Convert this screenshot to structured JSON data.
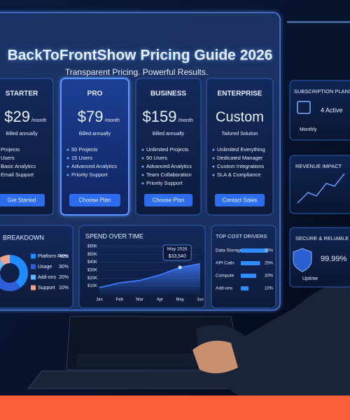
{
  "header": {
    "title": "BackToFrontShow Pricing Guide 2026",
    "subtitle": "Transparent Pricing. Powerful Results."
  },
  "plans": [
    {
      "name": "STARTER",
      "price": "$29",
      "period": "/month",
      "billing": "Billed annually",
      "features": [
        "Projects",
        "Users",
        "Basic Analytics",
        "Email Support"
      ],
      "button": "Get Started"
    },
    {
      "name": "PRO",
      "price": "$79",
      "period": "/month",
      "billing": "Billed annually",
      "features": [
        "50 Projects",
        "15 Users",
        "Advanced Analytics",
        "Priority Support"
      ],
      "button": "Choose Plan"
    },
    {
      "name": "BUSINESS",
      "price": "$159",
      "period": "/month",
      "billing": "Billed annually",
      "features": [
        "Unlimited Projects",
        "50 Users",
        "Advanced Analytics",
        "Team Collaboration",
        "Priority Support"
      ],
      "button": "Choose Plan"
    },
    {
      "name": "ENTERPRISE",
      "price": "Custom",
      "billing": "Tailored Solution",
      "features": [
        "Unlimited Everything",
        "Dedicated Manager",
        "Custom Integrations",
        "SLA & Compliance"
      ],
      "button": "Contact Sales"
    }
  ],
  "side_panels": {
    "subscription": {
      "title": "SUBSCRIPTION PLANS",
      "lines": [
        "4 Active",
        "Monthly"
      ]
    },
    "revenue": {
      "title": "REVENUE IMPACT"
    },
    "security": {
      "title": "SECURE & RELIABLE",
      "value": "99.99%",
      "caption": "Uptime"
    }
  },
  "breakdown": {
    "title": "BREAKDOWN",
    "items": [
      {
        "name": "Platform Fees",
        "value": 40,
        "label": "40%",
        "color": "#1e8cff"
      },
      {
        "name": "Usage",
        "value": 30,
        "label": "30%",
        "color": "#2f5fd8"
      },
      {
        "name": "Add-ons",
        "value": 20,
        "label": "20%",
        "color": "#63b8ff"
      },
      {
        "name": "Support",
        "value": 10,
        "label": "10%",
        "color": "#f0a58a"
      }
    ]
  },
  "spend": {
    "title": "SPEND OVER TIME",
    "categories": [
      "Jan",
      "Feb",
      "Mar",
      "Apr",
      "May",
      "Jun"
    ],
    "values": [
      8000,
      14000,
      17000,
      24000,
      33540,
      38000
    ],
    "ylim": [
      0,
      60000
    ],
    "yticks": [
      {
        "value": 10000,
        "label": "$10K"
      },
      {
        "value": 20000,
        "label": "$20K"
      },
      {
        "value": 30000,
        "label": "$30K"
      },
      {
        "value": 40000,
        "label": "$40K"
      },
      {
        "value": 50000,
        "label": "$50K"
      },
      {
        "value": 60000,
        "label": "$60K"
      }
    ],
    "annotation": {
      "label": "May 2026",
      "value": "$33,540"
    },
    "color": "#3d7bff"
  },
  "drivers": {
    "title": "TOP COST DRIVERS",
    "items": [
      {
        "name": "Data Storage",
        "value": 35,
        "label": "35%"
      },
      {
        "name": "API Calls",
        "value": 25,
        "label": "25%"
      },
      {
        "name": "Compute",
        "value": 20,
        "label": "20%"
      },
      {
        "name": "Add-ons",
        "value": 10,
        "label": "10%"
      }
    ],
    "color": "#2d8cff"
  }
}
